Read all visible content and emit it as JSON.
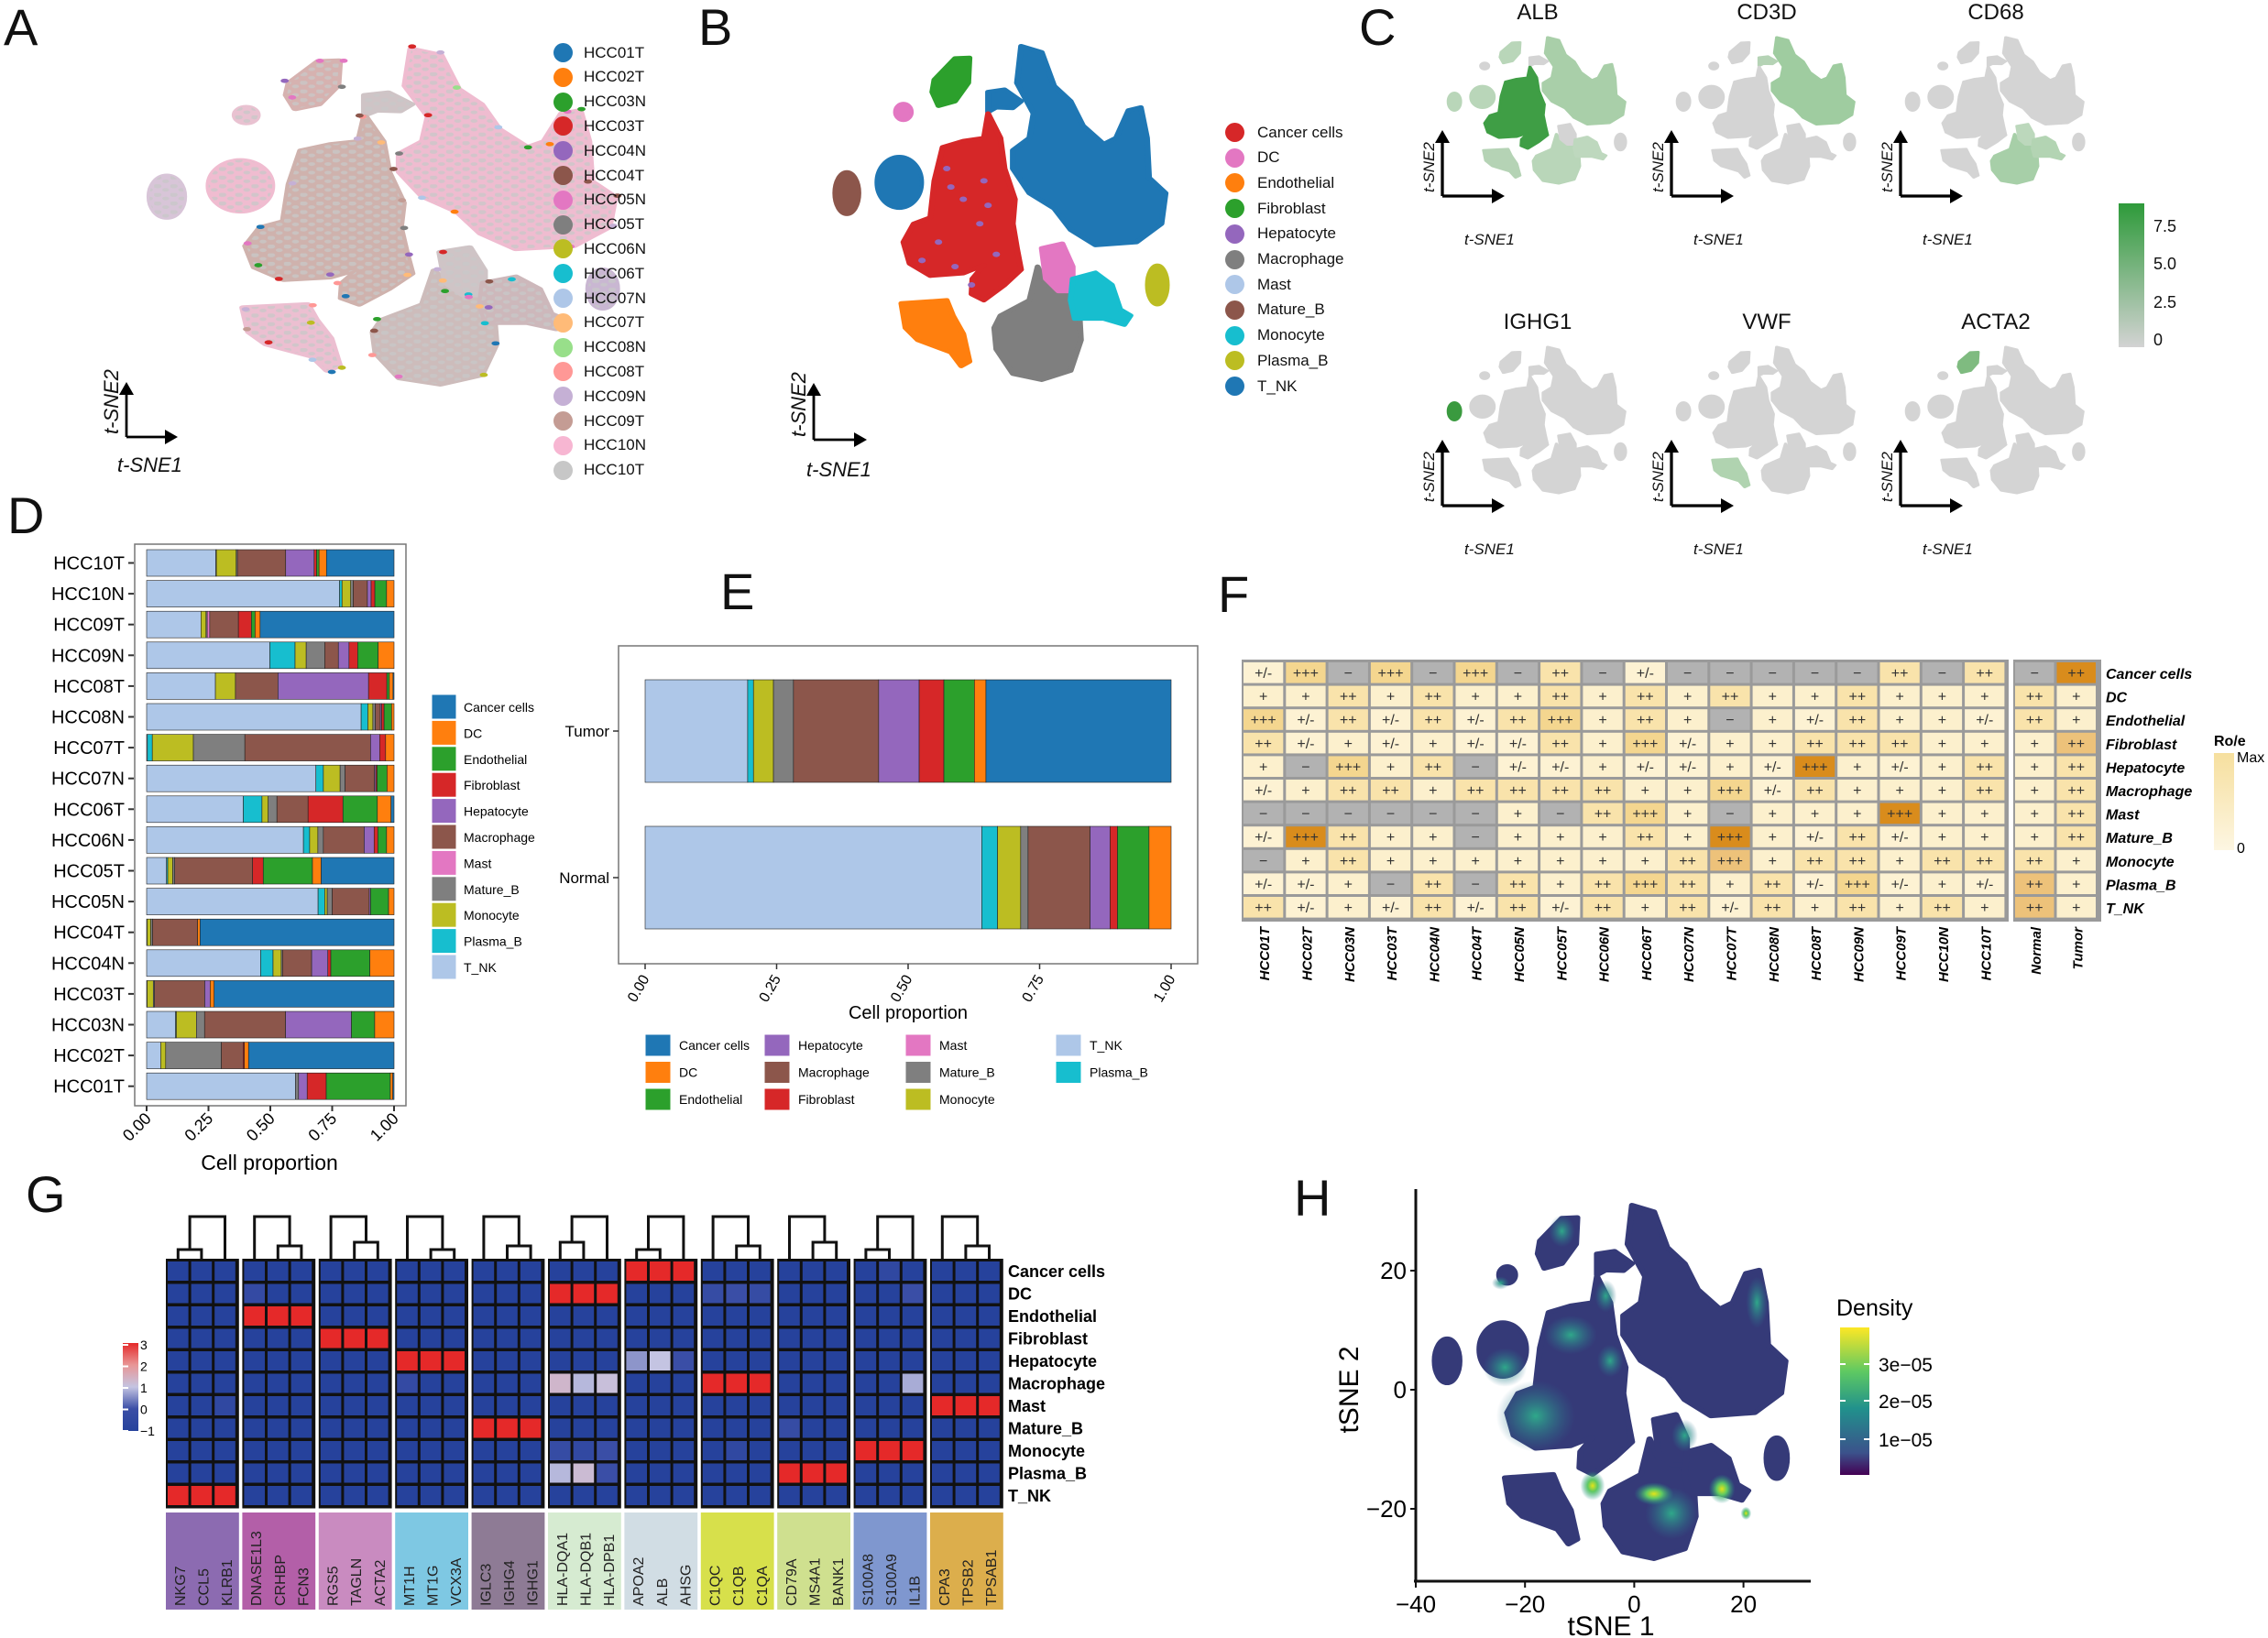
{
  "panel_labels": {
    "a": "A",
    "b": "B",
    "c": "C",
    "d": "D",
    "e": "E",
    "f": "F",
    "g": "G",
    "h": "H"
  },
  "tsne_axes": {
    "x": "t-SNE1",
    "y": "t-SNE2"
  },
  "panel_a": {
    "legend": [
      {
        "label": "HCC01T",
        "color": "#1f77b4"
      },
      {
        "label": "HCC02T",
        "color": "#ff7f0e"
      },
      {
        "label": "HCC03N",
        "color": "#2ca02c"
      },
      {
        "label": "HCC03T",
        "color": "#d62728"
      },
      {
        "label": "HCC04N",
        "color": "#9467bd"
      },
      {
        "label": "HCC04T",
        "color": "#8c564b"
      },
      {
        "label": "HCC05N",
        "color": "#e377c2"
      },
      {
        "label": "HCC05T",
        "color": "#7f7f7f"
      },
      {
        "label": "HCC06N",
        "color": "#bcbd22"
      },
      {
        "label": "HCC06T",
        "color": "#17becf"
      },
      {
        "label": "HCC07N",
        "color": "#aec7e8"
      },
      {
        "label": "HCC07T",
        "color": "#ffbb78"
      },
      {
        "label": "HCC08N",
        "color": "#98df8a"
      },
      {
        "label": "HCC08T",
        "color": "#ff9896"
      },
      {
        "label": "HCC09N",
        "color": "#c5b0d5"
      },
      {
        "label": "HCC09T",
        "color": "#c49c94"
      },
      {
        "label": "HCC10N",
        "color": "#f7b6d2"
      },
      {
        "label": "HCC10T",
        "color": "#c7c7c7"
      }
    ]
  },
  "panel_b": {
    "legend": [
      {
        "label": "Cancer cells",
        "color": "#d62728"
      },
      {
        "label": "DC",
        "color": "#e377c2"
      },
      {
        "label": "Endothelial",
        "color": "#ff7f0e"
      },
      {
        "label": "Fibroblast",
        "color": "#2ca02c"
      },
      {
        "label": "Hepatocyte",
        "color": "#9467bd"
      },
      {
        "label": "Macrophage",
        "color": "#7f7f7f"
      },
      {
        "label": "Mast",
        "color": "#aec7e8"
      },
      {
        "label": "Mature_B",
        "color": "#8c564b"
      },
      {
        "label": "Monocyte",
        "color": "#17becf"
      },
      {
        "label": "Plasma_B",
        "color": "#bcbd22"
      },
      {
        "label": "T_NK",
        "color": "#1f77b4"
      }
    ]
  },
  "panel_c": {
    "genes": [
      "ALB",
      "CD3D",
      "CD68",
      "IGHG1",
      "VWF",
      "ACTA2"
    ],
    "colorbar": {
      "ticks": [
        "7.5",
        "5.0",
        "2.5",
        "0"
      ],
      "low": "#d3d3d3",
      "high": "#2e9a3a"
    }
  },
  "chart_data": [
    {
      "id": "D",
      "type": "bar",
      "orientation": "horizontal",
      "stacked": true,
      "xlabel": "Cell proportion",
      "ylabel": "",
      "xlim": [
        0,
        1
      ],
      "xticks": [
        "0.00",
        "0.25",
        "0.50",
        "0.75",
        "1.00"
      ],
      "stack_order": [
        "T_NK",
        "Plasma_B",
        "Monocyte",
        "Mature_B",
        "Mast",
        "Macrophage",
        "Hepatocyte",
        "Fibroblast",
        "Endothelial",
        "DC",
        "Cancer cells"
      ],
      "legend": [
        {
          "label": "Cancer cells",
          "color": "#1f77b4"
        },
        {
          "label": "DC",
          "color": "#ff7f0e"
        },
        {
          "label": "Endothelial",
          "color": "#2ca02c"
        },
        {
          "label": "Fibroblast",
          "color": "#d62728"
        },
        {
          "label": "Hepatocyte",
          "color": "#9467bd"
        },
        {
          "label": "Macrophage",
          "color": "#8c564b"
        },
        {
          "label": "Mast",
          "color": "#e377c2"
        },
        {
          "label": "Mature_B",
          "color": "#7f7f7f"
        },
        {
          "label": "Monocyte",
          "color": "#bcbd22"
        },
        {
          "label": "Plasma_B",
          "color": "#17becf"
        },
        {
          "label": "T_NK",
          "color": "#aec7e8"
        }
      ],
      "categories": [
        "HCC10T",
        "HCC10N",
        "HCC09T",
        "HCC09N",
        "HCC08T",
        "HCC08N",
        "HCC07T",
        "HCC07N",
        "HCC06T",
        "HCC06N",
        "HCC05T",
        "HCC05N",
        "HCC04T",
        "HCC04N",
        "HCC03T",
        "HCC03N",
        "HCC02T",
        "HCC01T"
      ],
      "values": [
        [
          0.28,
          0.002,
          0.08,
          0.005,
          0,
          0.195,
          0.115,
          0.01,
          0.01,
          0.03,
          0.273
        ],
        [
          0.775,
          0.01,
          0.035,
          0.01,
          0,
          0.057,
          0.015,
          0.015,
          0.047,
          0.03,
          0
        ],
        [
          0.218,
          0,
          0.02,
          0.005,
          0.01,
          0.115,
          0,
          0.052,
          0.015,
          0.02,
          0.537
        ],
        [
          0.498,
          0.102,
          0.045,
          0.075,
          0,
          0.055,
          0.043,
          0.035,
          0.083,
          0.064,
          0
        ],
        [
          0.278,
          0,
          0.081,
          0,
          0,
          0.172,
          0.366,
          0.074,
          0.01,
          0.015,
          0.004
        ],
        [
          0.861,
          0.027,
          0.02,
          0.01,
          0,
          0.02,
          0.005,
          0.01,
          0.03,
          0.01,
          0
        ],
        [
          0.003,
          0.02,
          0.166,
          0.208,
          0,
          0.508,
          0.037,
          0.024,
          0,
          0.034,
          0
        ],
        [
          0.678,
          0.03,
          0.067,
          0.02,
          0,
          0.118,
          0.005,
          0.005,
          0.04,
          0.028,
          0
        ],
        [
          0.388,
          0.075,
          0.025,
          0.035,
          0,
          0.125,
          0,
          0.14,
          0.138,
          0.055,
          0.012
        ],
        [
          0.63,
          0.025,
          0.033,
          0.022,
          0,
          0.164,
          0.04,
          0.015,
          0.035,
          0.03,
          0
        ],
        [
          0.08,
          0.005,
          0.02,
          0.008,
          0,
          0.313,
          0,
          0.043,
          0.198,
          0.035,
          0.293
        ],
        [
          0.693,
          0.027,
          0.01,
          0.02,
          0,
          0.15,
          0.005,
          0,
          0.073,
          0.022,
          0
        ],
        [
          0.002,
          0,
          0.015,
          0.007,
          0,
          0.182,
          0,
          0,
          0,
          0.01,
          0.784
        ],
        [
          0.458,
          0.05,
          0.033,
          0.005,
          0,
          0.117,
          0.065,
          0.012,
          0.157,
          0.097,
          0
        ],
        [
          0.002,
          0,
          0.025,
          0.005,
          0,
          0.203,
          0.022,
          0,
          0,
          0.016,
          0.727
        ],
        [
          0.117,
          0.003,
          0.081,
          0.033,
          0,
          0.327,
          0.266,
          0,
          0.094,
          0.078,
          0
        ],
        [
          0.057,
          0,
          0.02,
          0.225,
          0,
          0.088,
          0,
          0.005,
          0,
          0.017,
          0.588
        ],
        [
          0.602,
          0,
          0,
          0.012,
          0,
          0,
          0.035,
          0.077,
          0.259,
          0.01,
          0.005
        ]
      ]
    },
    {
      "id": "E",
      "type": "bar",
      "orientation": "horizontal",
      "stacked": true,
      "xlabel": "Cell proportion",
      "xlim": [
        0,
        1
      ],
      "xticks": [
        "0.00",
        "0.25",
        "0.50",
        "0.75",
        "1.00"
      ],
      "categories": [
        "Tumor",
        "Normal"
      ],
      "stack_order": [
        "T_NK",
        "Plasma_B",
        "Monocyte",
        "Mature_B",
        "Mast",
        "Macrophage",
        "Hepatocyte",
        "Fibroblast",
        "Endothelial",
        "DC",
        "Cancer cells"
      ],
      "values": [
        [
          0.195,
          0.011,
          0.038,
          0.038,
          0,
          0.162,
          0.077,
          0.047,
          0.058,
          0.022,
          0.352
        ],
        [
          0.64,
          0.03,
          0.044,
          0.014,
          0,
          0.118,
          0.038,
          0.014,
          0.06,
          0.042,
          0
        ]
      ],
      "legend_columns": [
        [
          "Cancer cells",
          "DC",
          "Endothelial"
        ],
        [
          "Hepatocyte",
          "Macrophage",
          "Fibroblast"
        ],
        [
          "Mast",
          "Mature_B",
          "Monocyte"
        ],
        [
          "T_NK",
          "Plasma_B"
        ]
      ]
    },
    {
      "id": "F",
      "type": "table",
      "columns": [
        "HCC01T",
        "HCC02T",
        "HCC03N",
        "HCC03T",
        "HCC04N",
        "HCC04T",
        "HCC05N",
        "HCC05T",
        "HCC06N",
        "HCC06T",
        "HCC07N",
        "HCC07T",
        "HCC08N",
        "HCC08T",
        "HCC09N",
        "HCC09T",
        "HCC10N",
        "HCC10T",
        "Normal",
        "Tumor"
      ],
      "rows": [
        "Cancer cells",
        "DC",
        "Endothelial",
        "Fibroblast",
        "Hepatocyte",
        "Macrophage",
        "Mast",
        "Mature_B",
        "Monocyte",
        "Plasma_B",
        "T_NK"
      ],
      "values": [
        [
          "+/-",
          "+++",
          "−",
          "+++",
          "−",
          "+++",
          "−",
          "++",
          "−",
          "+/-",
          "−",
          "−",
          "−",
          "−",
          "−",
          "++",
          "−",
          "++",
          "−",
          "++"
        ],
        [
          "+",
          "+",
          "++",
          "+",
          "++",
          "+",
          "+",
          "++",
          "+",
          "++",
          "+",
          "++",
          "+",
          "+",
          "++",
          "+",
          "+",
          "+",
          "++",
          "+"
        ],
        [
          "+++",
          "+/-",
          "++",
          "+/-",
          "++",
          "+/-",
          "++",
          "+++",
          "+",
          "++",
          "+",
          "−",
          "+",
          "+/-",
          "++",
          "+",
          "+",
          "+/-",
          "++",
          "+"
        ],
        [
          "++",
          "+/-",
          "+",
          "+/-",
          "+",
          "+/-",
          "+/-",
          "++",
          "+",
          "+++",
          "+/-",
          "+",
          "+",
          "++",
          "++",
          "++",
          "+",
          "+",
          "+",
          "++"
        ],
        [
          "+",
          "−",
          "+++",
          "+",
          "++",
          "−",
          "+/-",
          "+/-",
          "+",
          "+/-",
          "+/-",
          "+",
          "+/-",
          "+++",
          "+",
          "+/-",
          "+",
          "++",
          "+",
          "++"
        ],
        [
          "+/-",
          "+",
          "++",
          "++",
          "+",
          "++",
          "++",
          "++",
          "++",
          "+",
          "+",
          "+++",
          "+/-",
          "++",
          "+",
          "+",
          "+",
          "++",
          "+",
          "++"
        ],
        [
          "−",
          "−",
          "−",
          "−",
          "−",
          "−",
          "+",
          "−",
          "++",
          "+++",
          "+",
          "−",
          "+",
          "+",
          "+",
          "+++",
          "+",
          "+",
          "+",
          "++"
        ],
        [
          "+/-",
          "+++",
          "++",
          "+",
          "+",
          "−",
          "+",
          "+",
          "+",
          "++",
          "+",
          "+++",
          "+",
          "+/-",
          "++",
          "+/-",
          "+",
          "+",
          "+",
          "++"
        ],
        [
          "−",
          "+",
          "++",
          "+",
          "+",
          "+",
          "+",
          "+",
          "+",
          "+",
          "++",
          "+++",
          "+",
          "++",
          "++",
          "+",
          "++",
          "++",
          "++",
          "+"
        ],
        [
          "+/-",
          "+/-",
          "+",
          "−",
          "++",
          "−",
          "++",
          "+",
          "++",
          "+++",
          "++",
          "+",
          "++",
          "+/-",
          "+++",
          "+/-",
          "+",
          "+/-",
          "++",
          "+"
        ],
        [
          "++",
          "+/-",
          "+",
          "+/-",
          "++",
          "+/-",
          "++",
          "+/-",
          "++",
          "+",
          "++",
          "+/-",
          "++",
          "+",
          "++",
          "+",
          "++",
          "+",
          "++",
          "+"
        ]
      ],
      "symbol_colors": {
        "−": "#b2b2b2",
        "+/-": "#fdf2d3",
        "+": "#fcf0cd",
        "++": "#f9e3ab",
        "+++": "#f4d68f"
      },
      "strong_cells": [
        [
          0,
          19
        ],
        [
          7,
          1
        ],
        [
          7,
          11
        ],
        [
          4,
          13
        ],
        [
          6,
          15
        ]
      ],
      "medium_cells": [
        [
          8,
          11
        ],
        [
          3,
          19
        ],
        [
          9,
          18
        ],
        [
          10,
          18
        ]
      ],
      "strong_color": "#d98c1c",
      "medium_color": "#edc27a",
      "legend": {
        "title": "Ro/e",
        "max": "Max",
        "min": "0"
      }
    },
    {
      "id": "G",
      "type": "heatmap",
      "rows": [
        "Cancer cells",
        "DC",
        "Endothelial",
        "Fibroblast",
        "Hepatocyte",
        "Macrophage",
        "Mast",
        "Mature_B",
        "Monocyte",
        "Plasma_B",
        "T_NK"
      ],
      "gene_groups": [
        {
          "genes": [
            "NKG7",
            "CCL5",
            "KLRB1"
          ],
          "high_row": "T_NK",
          "color": "#8c6bb1"
        },
        {
          "genes": [
            "DNASE1L3",
            "CRHBP",
            "FCN3"
          ],
          "high_row": "Endothelial",
          "color": "#b35fa8"
        },
        {
          "genes": [
            "RGS5",
            "TAGLN",
            "ACTA2"
          ],
          "high_row": "Fibroblast",
          "color": "#c98bc0"
        },
        {
          "genes": [
            "MT1H",
            "MT1G",
            "VCX3A"
          ],
          "high_row": "Hepatocyte",
          "color": "#7ec8e3"
        },
        {
          "genes": [
            "IGLC3",
            "IGHG4",
            "IGHG1"
          ],
          "high_row": "Mature_B",
          "color": "#8e7b95"
        },
        {
          "genes": [
            "HLA-DQA1",
            "HLA-DQB1",
            "HLA-DPB1"
          ],
          "high_row": "DC",
          "color": "#d6ebd1"
        },
        {
          "genes": [
            "APOA2",
            "ALB",
            "AHSG"
          ],
          "high_row": "Cancer cells",
          "color": "#d1dde4"
        },
        {
          "genes": [
            "C1QC",
            "C1QB",
            "C1QA"
          ],
          "high_row": "Macrophage",
          "color": "#d7e04b"
        },
        {
          "genes": [
            "CD79A",
            "MS4A1",
            "BANK1"
          ],
          "high_row": "Plasma_B",
          "color": "#cfe08f"
        },
        {
          "genes": [
            "S100A8",
            "S100A9",
            "IL1B"
          ],
          "high_row": "Monocyte",
          "color": "#7f97cf"
        },
        {
          "genes": [
            "CPA3",
            "TPSB2",
            "TPSAB1"
          ],
          "high_row": "Mast",
          "color": "#dcae4c"
        }
      ],
      "default_value": -1,
      "high_value": 3,
      "moderate": [
        [
          "DC",
          3,
          -0.3
        ],
        [
          "Macrophage",
          9,
          -0.3
        ],
        [
          "Mast",
          2,
          -0.5
        ],
        [
          "Macrophage",
          15,
          1.3
        ],
        [
          "Macrophage",
          16,
          0.9
        ],
        [
          "Macrophage",
          17,
          1.1
        ],
        [
          "Monocyte",
          15,
          -0.2
        ],
        [
          "Monocyte",
          16,
          -0.4
        ],
        [
          "Monocyte",
          17,
          0
        ],
        [
          "Plasma_B",
          15,
          0.9
        ],
        [
          "Plasma_B",
          16,
          1.2
        ],
        [
          "Plasma_B",
          17,
          0
        ],
        [
          "Hepatocyte",
          18,
          0.6
        ],
        [
          "Hepatocyte",
          19,
          1.0
        ],
        [
          "Hepatocyte",
          20,
          0
        ],
        [
          "DC",
          21,
          -0.2
        ],
        [
          "DC",
          22,
          0
        ],
        [
          "DC",
          23,
          -0.2
        ],
        [
          "Monocyte",
          22,
          -0.5
        ],
        [
          "Mature_B",
          24,
          -0.2
        ],
        [
          "DC",
          29,
          0
        ],
        [
          "Macrophage",
          29,
          0.8
        ],
        [
          "Cancer cells",
          28,
          -0.5
        ]
      ],
      "colorbar": {
        "ticks": [
          "3",
          "2",
          "1",
          "0",
          "−1"
        ],
        "range": [
          -1,
          3
        ]
      }
    },
    {
      "id": "H",
      "type": "scatter",
      "xlabel": "tSNE 1",
      "ylabel": "tSNE 2",
      "xticks": [
        -40,
        -20,
        0,
        20
      ],
      "yticks": [
        -20,
        0,
        20
      ],
      "xlim": [
        -40,
        32
      ],
      "ylim": [
        -30,
        34
      ],
      "legend": {
        "title": "Density",
        "ticks": [
          "3e−05",
          "2e−05",
          "1e−05"
        ]
      }
    }
  ]
}
